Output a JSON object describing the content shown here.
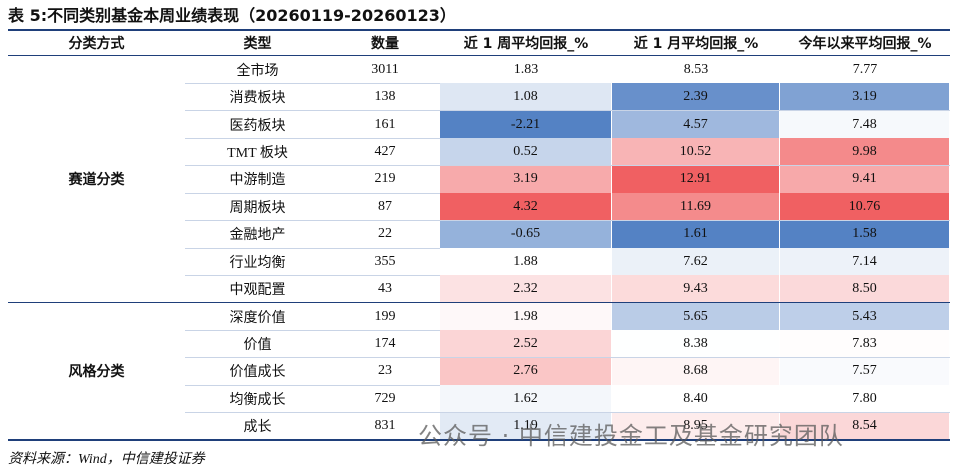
{
  "title": "表 5:不同类别基金本周业绩表现（20260119-20260123）",
  "table": {
    "header": [
      "分类方式",
      "类型",
      "数量",
      "近 1 周平均回报_%",
      "近 1 月平均回报_%",
      "今年以来平均回报_%"
    ],
    "groups": [
      {
        "name": "赛道分类",
        "rows": [
          [
            "全市场",
            "3011",
            "1.83",
            "8.53",
            "7.77"
          ],
          [
            "消费板块",
            "138",
            "1.08",
            "2.39",
            "3.19"
          ],
          [
            "医药板块",
            "161",
            "-2.21",
            "4.57",
            "7.48"
          ],
          [
            "TMT 板块",
            "427",
            "0.52",
            "10.52",
            "9.98"
          ],
          [
            "中游制造",
            "219",
            "3.19",
            "12.91",
            "9.41"
          ],
          [
            "周期板块",
            "87",
            "4.32",
            "11.69",
            "10.76"
          ],
          [
            "金融地产",
            "22",
            "-0.65",
            "1.61",
            "1.58"
          ],
          [
            "行业均衡",
            "355",
            "1.88",
            "7.62",
            "7.14"
          ],
          [
            "中观配置",
            "43",
            "2.32",
            "9.43",
            "8.50"
          ]
        ]
      },
      {
        "name": "风格分类",
        "rows": [
          [
            "深度价值",
            "199",
            "1.98",
            "5.65",
            "5.43"
          ],
          [
            "价值",
            "174",
            "2.52",
            "8.38",
            "7.83"
          ],
          [
            "价值成长",
            "23",
            "2.76",
            "8.68",
            "7.57"
          ],
          [
            "均衡成长",
            "729",
            "1.62",
            "8.40",
            "7.80"
          ],
          [
            "成长",
            "831",
            "1.19",
            "8.95",
            "8.54"
          ]
        ]
      }
    ]
  },
  "source": "资料来源：Wind，中信建投证券",
  "watermark": "公众号 · 中信建投金工及基金研究团队"
}
